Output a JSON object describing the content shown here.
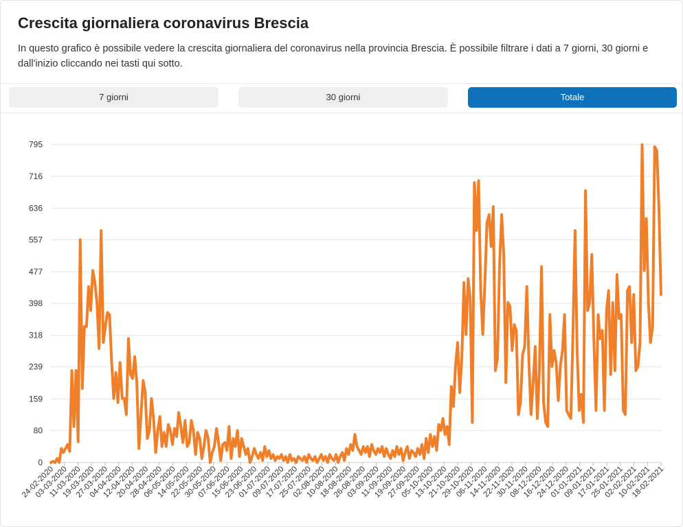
{
  "header": {
    "title": "Crescita giornaliera coronavirus Brescia",
    "description": "In questo grafico è possibile vedere la crescita giornaliera del coronavirus nella provincia Brescia. È possibile filtrare i dati a 7 giorni, 30 giorni e dall'inizio cliccando nei tasti qui sotto."
  },
  "filters": {
    "btn_7": "7 giorni",
    "btn_30": "30 giorni",
    "btn_total": "Totale",
    "active": "Totale"
  },
  "colors": {
    "line": "#f07f2a",
    "active_button": "#0d72b9",
    "grid": "#e3e3e3"
  },
  "chart_data": {
    "type": "line",
    "title": "",
    "xlabel": "",
    "ylabel": "",
    "ylim": [
      0,
      810
    ],
    "yticks": [
      0,
      80,
      159,
      239,
      318,
      398,
      477,
      557,
      636,
      716,
      795
    ],
    "xtick_labels": [
      "24-02-2020",
      "03-03-2020",
      "11-03-2020",
      "19-03-2020",
      "27-03-2020",
      "04-04-2020",
      "12-04-2020",
      "20-04-2020",
      "28-04-2020",
      "06-05-2020",
      "14-05-2020",
      "22-05-2020",
      "30-05-2020",
      "07-06-2020",
      "15-06-2020",
      "23-06-2020",
      "01-07-2020",
      "09-07-2020",
      "17-07-2020",
      "25-07-2020",
      "02-08-2020",
      "10-08-2020",
      "18-08-2020",
      "26-08-2020",
      "03-09-2020",
      "11-09-2020",
      "19-09-2020",
      "27-09-2020",
      "05-10-2020",
      "13-10-2020",
      "21-10-2020",
      "29-10-2020",
      "06-11-2020",
      "14-11-2020",
      "22-11-2020",
      "30-11-2020",
      "08-12-2020",
      "16-12-2020",
      "24-12-2020",
      "01-01-2021",
      "09-01-2021",
      "17-01-2021",
      "25-01-2021",
      "02-02-2021",
      "10-02-2021",
      "18-02-2021"
    ],
    "grid": true,
    "legend": "none",
    "series": [
      {
        "start_date": "24-02-2020",
        "end_date": "21-02-2021",
        "daily_values": [
          0,
          3,
          0,
          10,
          0,
          35,
          25,
          35,
          45,
          28,
          230,
          90,
          230,
          52,
          557,
          185,
          340,
          340,
          440,
          380,
          480,
          450,
          400,
          285,
          580,
          300,
          340,
          375,
          370,
          250,
          160,
          225,
          150,
          250,
          160,
          160,
          120,
          310,
          220,
          210,
          265,
          200,
          35,
          120,
          205,
          175,
          60,
          80,
          160,
          110,
          25,
          80,
          115,
          40,
          75,
          40,
          95,
          80,
          45,
          85,
          65,
          125,
          90,
          50,
          105,
          40,
          50,
          105,
          80,
          20,
          75,
          60,
          10,
          40,
          80,
          60,
          0,
          25,
          40,
          85,
          50,
          5,
          45,
          50,
          30,
          90,
          10,
          60,
          40,
          80,
          15,
          60,
          40,
          20,
          35,
          0,
          15,
          35,
          20,
          10,
          25,
          5,
          40,
          15,
          30,
          10,
          20,
          5,
          15,
          10,
          20,
          5,
          15,
          0,
          20,
          5,
          10,
          0,
          15,
          10,
          5,
          15,
          0,
          20,
          10,
          5,
          15,
          0,
          10,
          20,
          5,
          15,
          0,
          20,
          10,
          5,
          20,
          0,
          15,
          25,
          5,
          35,
          20,
          45,
          30,
          70,
          40,
          30,
          20,
          40,
          25,
          40,
          15,
          45,
          30,
          20,
          35,
          25,
          40,
          15,
          35,
          20,
          10,
          30,
          15,
          40,
          20,
          35,
          5,
          25,
          40,
          10,
          30,
          25,
          15,
          35,
          20,
          45,
          10,
          60,
          25,
          70,
          40,
          65,
          30,
          95,
          80,
          110,
          70,
          90,
          45,
          190,
          140,
          240,
          300,
          175,
          260,
          450,
          320,
          460,
          410,
          100,
          700,
          580,
          705,
          430,
          320,
          450,
          600,
          620,
          540,
          640,
          230,
          260,
          490,
          620,
          520,
          200,
          400,
          390,
          280,
          345,
          330,
          120,
          150,
          270,
          290,
          440,
          250,
          120,
          200,
          290,
          110,
          230,
          490,
          150,
          100,
          90,
          370,
          240,
          280,
          250,
          155,
          240,
          280,
          370,
          130,
          120,
          110,
          320,
          580,
          280,
          130,
          170,
          100,
          680,
          380,
          400,
          520,
          300,
          130,
          370,
          310,
          330,
          130,
          380,
          430,
          220,
          400,
          230,
          470,
          360,
          370,
          130,
          120,
          430,
          440,
          300,
          420,
          230,
          240,
          300,
          795,
          480,
          610,
          400,
          300,
          340,
          790,
          780,
          640,
          420
        ]
      }
    ]
  }
}
